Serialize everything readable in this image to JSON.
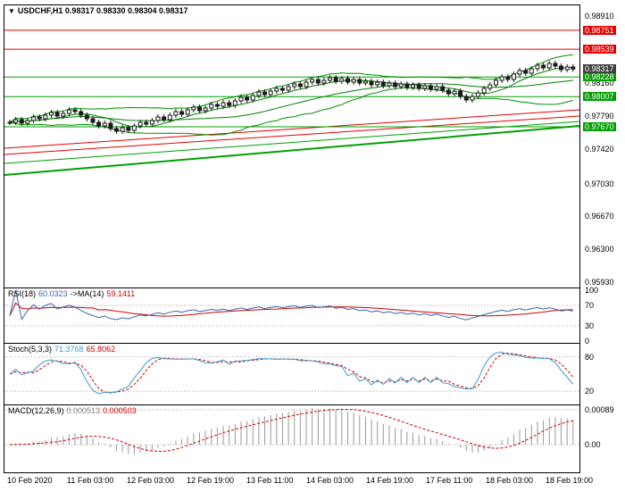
{
  "header": {
    "dropdown_icon": "▼",
    "title": "USDCHF,H1 0.98317 0.98330 0.98304 0.98317"
  },
  "colors": {
    "border": "#000000",
    "bull": "#ffffff",
    "bear": "#1a1a1a",
    "wick": "#1a1a1a",
    "ma": "#008000",
    "band": "#009000",
    "resistance": "#e60000",
    "support": "#00a000",
    "price_label_bg": "#404040",
    "grid": "#a8a8a8",
    "rsi_line": "#3a66b0",
    "rsi_ma": "#cc0000",
    "stoch_main": "#3a9ad0",
    "stoch_signal": "#cc0000",
    "macd_hist": "#999999",
    "macd_signal": "#cc0000"
  },
  "chart_data": {
    "type": "candlestick",
    "symbol": "USDCHF",
    "timeframe": "H1",
    "current_bar": {
      "open": 0.98317,
      "high": 0.9833,
      "low": 0.98304,
      "close": 0.98317
    },
    "ylim": [
      0.9587,
      0.9903
    ],
    "wick": 0.0003,
    "closes": [
      0.9772,
      0.9775,
      0.9771,
      0.9774,
      0.9778,
      0.9776,
      0.978,
      0.9783,
      0.9779,
      0.9782,
      0.9786,
      0.9784,
      0.978,
      0.9776,
      0.9772,
      0.9768,
      0.9771,
      0.9765,
      0.9762,
      0.9766,
      0.9763,
      0.9768,
      0.9772,
      0.977,
      0.9774,
      0.9778,
      0.9775,
      0.978,
      0.9784,
      0.9781,
      0.9786,
      0.9789,
      0.9785,
      0.9788,
      0.9792,
      0.979,
      0.9794,
      0.9791,
      0.9796,
      0.98,
      0.9797,
      0.9802,
      0.9806,
      0.9803,
      0.9807,
      0.981,
      0.9808,
      0.9812,
      0.9815,
      0.9812,
      0.9817,
      0.982,
      0.9816,
      0.9819,
      0.9822,
      0.9818,
      0.9821,
      0.9817,
      0.982,
      0.9816,
      0.9818,
      0.9814,
      0.9817,
      0.9813,
      0.9816,
      0.9812,
      0.9815,
      0.9811,
      0.9814,
      0.981,
      0.9813,
      0.9809,
      0.9812,
      0.9808,
      0.9804,
      0.9807,
      0.9801,
      0.9797,
      0.9801,
      0.9805,
      0.981,
      0.9814,
      0.9819,
      0.9823,
      0.982,
      0.9826,
      0.983,
      0.9827,
      0.9832,
      0.9836,
      0.9833,
      0.9838,
      0.9835,
      0.9831,
      0.9834,
      0.98317
    ],
    "y_ticks": [
      "0.98910",
      "0.98160",
      "0.97790",
      "0.97420",
      "0.97030",
      "0.96670",
      "0.96300",
      "0.95930"
    ],
    "levels": {
      "resistance": [
        0.98751,
        0.98539
      ],
      "support": [
        0.98228,
        0.98007,
        0.9767
      ],
      "current": 0.98317
    },
    "trendlines": [
      {
        "type": "resistance",
        "x": [
          0,
          1
        ],
        "y": [
          0.9743,
          0.9786
        ],
        "width": 1
      },
      {
        "type": "resistance",
        "x": [
          0,
          1
        ],
        "y": [
          0.9736,
          0.9779
        ],
        "width": 1
      },
      {
        "type": "support",
        "x": [
          0,
          1
        ],
        "y": [
          0.9726,
          0.9773
        ],
        "width": 1
      },
      {
        "type": "support",
        "x": [
          0,
          1
        ],
        "y": [
          0.9713,
          0.9768
        ],
        "width": 2
      }
    ],
    "overlays": {
      "sma_fast": 8,
      "sma_slow": 26,
      "bollinger_period": 20,
      "bollinger_dev": 2
    },
    "x_ticks": [
      "10 Feb 2020",
      "11 Feb 03:00",
      "12 Feb 03:00",
      "12 Feb 19:00",
      "13 Feb 11:00",
      "14 Feb 03:00",
      "14 Feb 19:00",
      "17 Feb 11:00",
      "18 Feb 03:00",
      "18 Feb 19:00"
    ],
    "indicators": {
      "rsi": {
        "name": "RSI(18)",
        "value": "60.0323",
        "ma_name": "->MA(14)",
        "ma_value": "59.1411",
        "period": 18,
        "ma_period": 14,
        "range": [
          0,
          100
        ],
        "ticks": [
          100,
          70,
          30,
          0
        ],
        "grid": [
          70,
          30
        ]
      },
      "stoch": {
        "name": "Stoch(5,3,3)",
        "value": "71.3768",
        "signal_value": "65.8062",
        "k_period": 5,
        "slowing": 3,
        "d_period": 3,
        "range": [
          0,
          100
        ],
        "ticks": [
          80,
          20
        ],
        "grid": [
          80,
          20
        ]
      },
      "macd": {
        "name": "MACD(12,26,9)",
        "value": "0.000513",
        "signal_value": "0.000503",
        "fast": 12,
        "slow": 26,
        "signal": 9,
        "range": [
          -0.0007,
          0.001
        ],
        "ticks": [
          {
            "label": "0.00089",
            "value": 0.00089
          },
          {
            "label": "0.00",
            "value": 0
          }
        ]
      }
    }
  }
}
